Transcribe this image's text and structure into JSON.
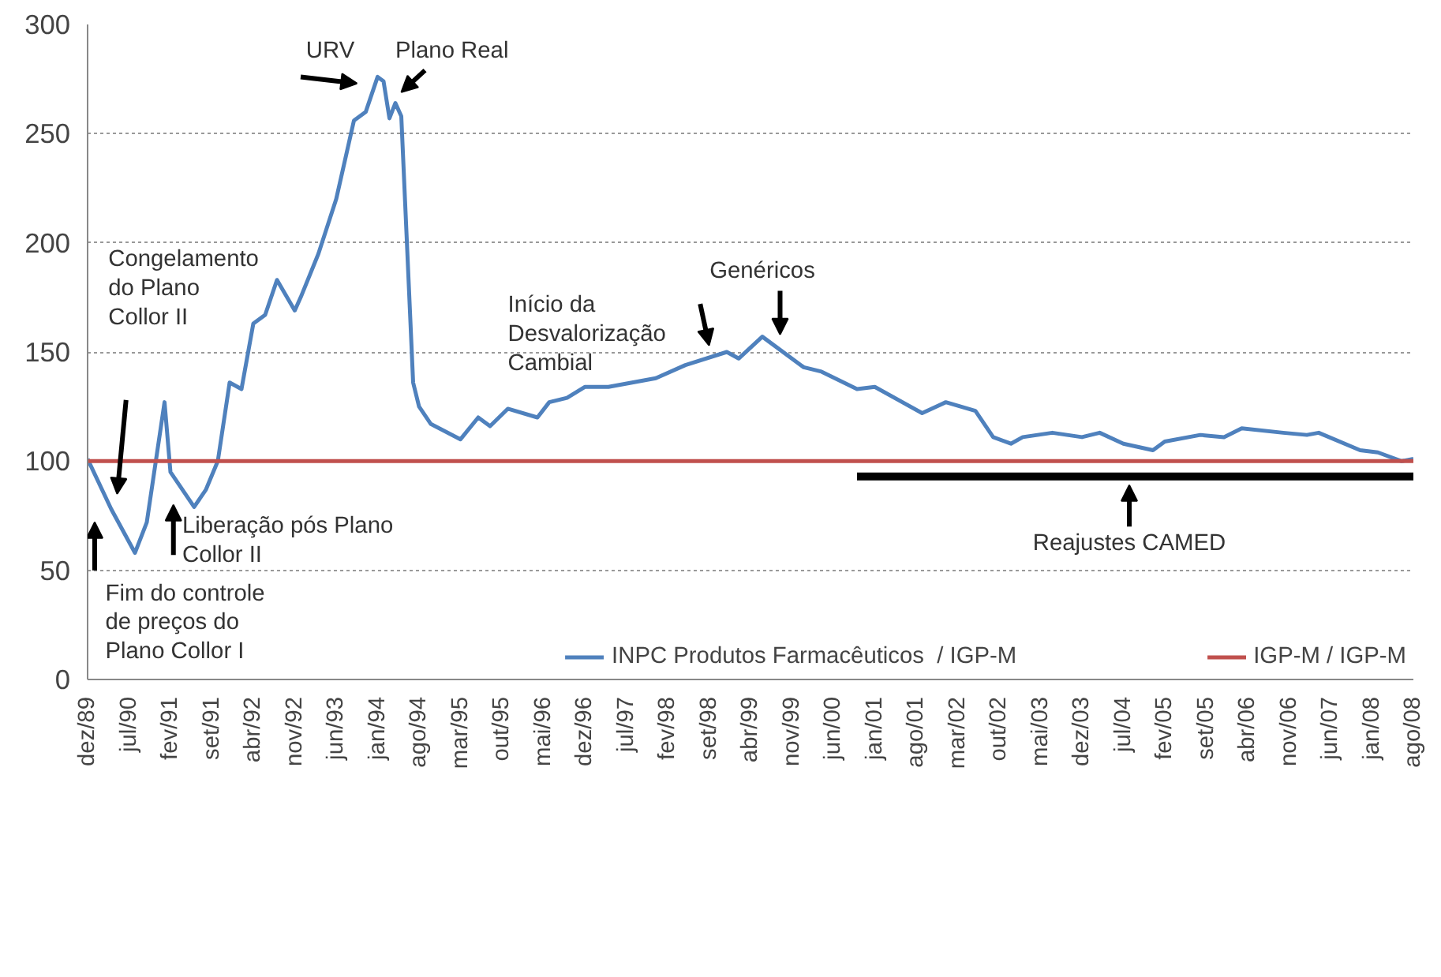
{
  "chart_data": {
    "type": "line",
    "x": [
      "1989-12",
      "1990-04",
      "1990-08",
      "1990-10",
      "1991-01",
      "1991-02",
      "1991-06",
      "1991-08",
      "1991-10",
      "1991-12",
      "1992-02",
      "1992-04",
      "1992-06",
      "1992-08",
      "1992-11",
      "1992-12",
      "1993-03",
      "1993-06",
      "1993-09",
      "1993-11",
      "1994-01",
      "1994-02",
      "1994-03",
      "1994-04",
      "1994-05",
      "1994-07",
      "1994-08",
      "1994-10",
      "1995-03",
      "1995-06",
      "1995-08",
      "1995-11",
      "1996-04",
      "1996-06",
      "1996-09",
      "1996-12",
      "1997-04",
      "1997-08",
      "1997-12",
      "1998-05",
      "1998-12",
      "1999-02",
      "1999-06",
      "2000-01",
      "2000-04",
      "2000-10",
      "2001-01",
      "2001-09",
      "2002-01",
      "2002-06",
      "2002-09",
      "2002-12",
      "2003-02",
      "2003-07",
      "2003-12",
      "2004-03",
      "2004-07",
      "2004-12",
      "2005-02",
      "2005-08",
      "2005-12",
      "2006-03",
      "2006-10",
      "2007-02",
      "2007-04",
      "2007-11",
      "2008-02",
      "2008-06",
      "2008-08"
    ],
    "series": [
      {
        "name": "INPC Produtos Farmacêuticos  / IGP-M",
        "color": "#4f81bd",
        "values": [
          101,
          78,
          58,
          72,
          127,
          95,
          79,
          87,
          100,
          136,
          133,
          163,
          167,
          183,
          169,
          175,
          195,
          220,
          256,
          260,
          276,
          274,
          257,
          264,
          258,
          136,
          125,
          117,
          110,
          120,
          116,
          124,
          120,
          127,
          129,
          134,
          134,
          136,
          138,
          144,
          150,
          147,
          157,
          143,
          141,
          133,
          134,
          122,
          127,
          123,
          111,
          108,
          111,
          113,
          111,
          113,
          108,
          105,
          109,
          112,
          111,
          115,
          113,
          112,
          113,
          105,
          104,
          100,
          101
        ]
      },
      {
        "name": "IGP-M / IGP-M",
        "color": "#c0504d",
        "x": [
          "1989-12",
          "2008-08"
        ],
        "values": [
          100,
          100
        ]
      },
      {
        "color": "#000000",
        "x": [
          "2000-10",
          "2008-08"
        ],
        "values": [
          93,
          93
        ]
      }
    ],
    "xlim": [
      "1989-12",
      "2008-08"
    ],
    "xticks": [
      {
        "value": "1989-12",
        "label": "dez/89"
      },
      {
        "value": "1990-07",
        "label": "jul/90"
      },
      {
        "value": "1991-02",
        "label": "fev/91"
      },
      {
        "value": "1991-09",
        "label": "set/91"
      },
      {
        "value": "1992-04",
        "label": "abr/92"
      },
      {
        "value": "1992-11",
        "label": "nov/92"
      },
      {
        "value": "1993-06",
        "label": "jun/93"
      },
      {
        "value": "1994-01",
        "label": "jan/94"
      },
      {
        "value": "1994-08",
        "label": "ago/94"
      },
      {
        "value": "1995-03",
        "label": "mar/95"
      },
      {
        "value": "1995-10",
        "label": "out/95"
      },
      {
        "value": "1996-05",
        "label": "mai/96"
      },
      {
        "value": "1996-12",
        "label": "dez/96"
      },
      {
        "value": "1997-07",
        "label": "jul/97"
      },
      {
        "value": "1998-02",
        "label": "fev/98"
      },
      {
        "value": "1998-09",
        "label": "set/98"
      },
      {
        "value": "1999-04",
        "label": "abr/99"
      },
      {
        "value": "1999-11",
        "label": "nov/99"
      },
      {
        "value": "2000-06",
        "label": "jun/00"
      },
      {
        "value": "2001-01",
        "label": "jan/01"
      },
      {
        "value": "2001-08",
        "label": "ago/01"
      },
      {
        "value": "2002-03",
        "label": "mar/02"
      },
      {
        "value": "2002-10",
        "label": "out/02"
      },
      {
        "value": "2003-05",
        "label": "mai/03"
      },
      {
        "value": "2003-12",
        "label": "dez/03"
      },
      {
        "value": "2004-07",
        "label": "jul/04"
      },
      {
        "value": "2005-02",
        "label": "fev/05"
      },
      {
        "value": "2005-09",
        "label": "set/05"
      },
      {
        "value": "2006-04",
        "label": "abr/06"
      },
      {
        "value": "2006-11",
        "label": "nov/06"
      },
      {
        "value": "2007-06",
        "label": "jun/07"
      },
      {
        "value": "2008-01",
        "label": "jan/08"
      },
      {
        "value": "2008-08",
        "label": "ago/08"
      }
    ],
    "ylim": [
      0,
      300
    ],
    "yticks": [
      0,
      50,
      100,
      150,
      200,
      250,
      300
    ],
    "grid": "y",
    "legend": "bottom",
    "annotations": [
      "Fim do controle\nde preços do\nPlano Collor I",
      "Congelamento\ndo Plano\nCollor II",
      "Liberação pós Plano\nCollor II",
      "URV",
      "Plano Real",
      "Início da\nDesvalorização\nCambial",
      "Genéricos",
      {
        "text": "Reajustes CAMED",
        "x": "2004-08",
        "y": 93
      }
    ]
  }
}
